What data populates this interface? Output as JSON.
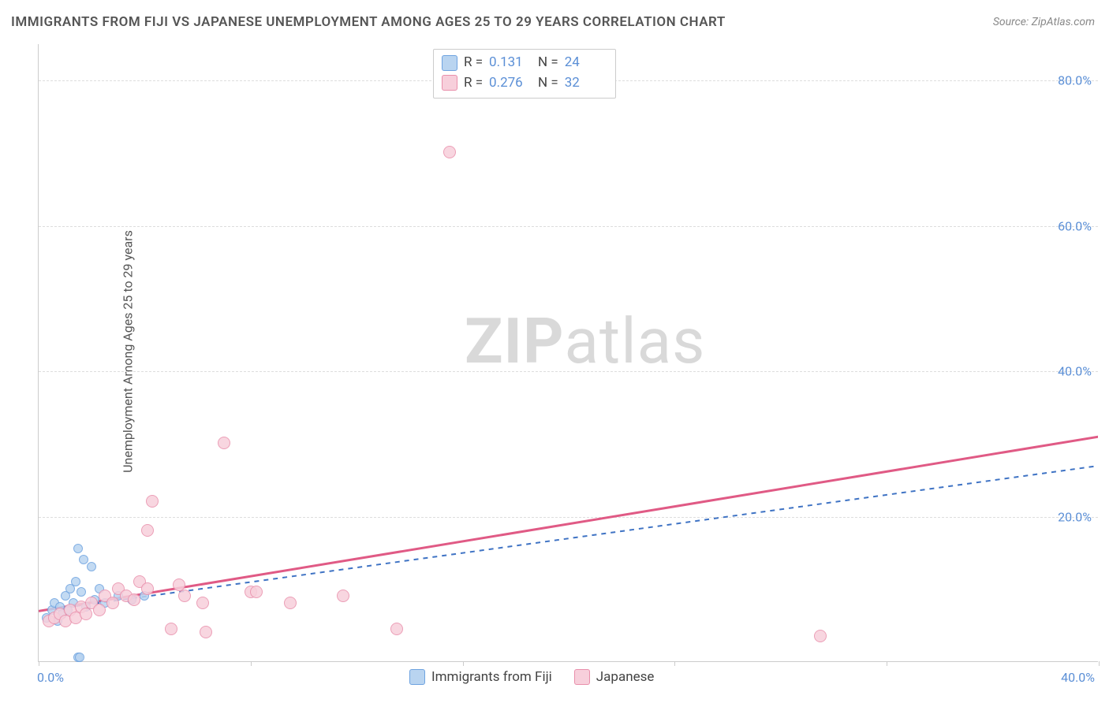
{
  "title": "IMMIGRANTS FROM FIJI VS JAPANESE UNEMPLOYMENT AMONG AGES 25 TO 29 YEARS CORRELATION CHART",
  "source": "Source: ZipAtlas.com",
  "ylabel": "Unemployment Among Ages 25 to 29 years",
  "watermark_zip": "ZIP",
  "watermark_atlas": "atlas",
  "chart": {
    "type": "scatter",
    "background_color": "#ffffff",
    "grid_color": "#dddddd",
    "axis_color": "#cccccc",
    "tick_label_color": "#5b8fd6",
    "xlim": [
      0,
      40
    ],
    "ylim": [
      0,
      85
    ],
    "ytick_step": 20,
    "ytick_labels": [
      "20.0%",
      "40.0%",
      "60.0%",
      "80.0%"
    ],
    "xtick_positions": [
      0,
      8,
      16,
      24,
      32,
      40
    ],
    "xtick_labels": {
      "0": "0.0%",
      "40": "40.0%"
    },
    "marker_radius": 8,
    "marker_radius_small": 6,
    "series": [
      {
        "name": "Immigrants from Fiji",
        "fill": "#b9d4f0",
        "stroke": "#6ea3e0",
        "trend_color": "#3f73c4",
        "trend_dash": "6,6",
        "trend_width": 2,
        "R_label": "R =",
        "R": "0.131",
        "N_label": "N =",
        "N": "24",
        "trend": {
          "x1": 0,
          "y1": 7,
          "x2": 40,
          "y2": 27
        },
        "points": [
          [
            0.3,
            6
          ],
          [
            0.5,
            7
          ],
          [
            0.6,
            8
          ],
          [
            0.7,
            5.5
          ],
          [
            0.8,
            7.5
          ],
          [
            0.9,
            6.5
          ],
          [
            1.0,
            9
          ],
          [
            1.1,
            7
          ],
          [
            1.2,
            10
          ],
          [
            1.3,
            8
          ],
          [
            1.4,
            11
          ],
          [
            1.5,
            15.5
          ],
          [
            1.6,
            9.5
          ],
          [
            1.7,
            14
          ],
          [
            1.8,
            7.5
          ],
          [
            2.0,
            13
          ],
          [
            2.1,
            8.5
          ],
          [
            2.3,
            10
          ],
          [
            2.5,
            8
          ],
          [
            1.5,
            0.5
          ],
          [
            1.55,
            0.5
          ],
          [
            3.0,
            9
          ],
          [
            3.5,
            8.5
          ],
          [
            4.0,
            9
          ]
        ]
      },
      {
        "name": "Japanese",
        "fill": "#f7cfdb",
        "stroke": "#e98fab",
        "trend_color": "#e05a85",
        "trend_dash": "",
        "trend_width": 3,
        "R_label": "R =",
        "R": "0.276",
        "N_label": "N =",
        "N": "32",
        "trend": {
          "x1": 0,
          "y1": 7,
          "x2": 40,
          "y2": 31
        },
        "points": [
          [
            0.4,
            5.5
          ],
          [
            0.6,
            6
          ],
          [
            0.8,
            6.5
          ],
          [
            1.0,
            5.5
          ],
          [
            1.2,
            7
          ],
          [
            1.4,
            6
          ],
          [
            1.6,
            7.5
          ],
          [
            1.8,
            6.5
          ],
          [
            2.0,
            8
          ],
          [
            2.3,
            7
          ],
          [
            2.5,
            9
          ],
          [
            2.8,
            8
          ],
          [
            3.0,
            10
          ],
          [
            3.3,
            9
          ],
          [
            3.6,
            8.5
          ],
          [
            3.8,
            11
          ],
          [
            4.1,
            10
          ],
          [
            4.1,
            18
          ],
          [
            4.3,
            22
          ],
          [
            5.0,
            4.5
          ],
          [
            5.3,
            10.5
          ],
          [
            5.5,
            9
          ],
          [
            6.2,
            8
          ],
          [
            6.3,
            4
          ],
          [
            7.0,
            30
          ],
          [
            8.0,
            9.5
          ],
          [
            8.2,
            9.5
          ],
          [
            9.5,
            8
          ],
          [
            11.5,
            9
          ],
          [
            13.5,
            4.5
          ],
          [
            15.5,
            70
          ],
          [
            29.5,
            3.5
          ]
        ]
      }
    ],
    "legend_bottom_items": [
      "Immigrants from Fiji",
      "Japanese"
    ]
  }
}
